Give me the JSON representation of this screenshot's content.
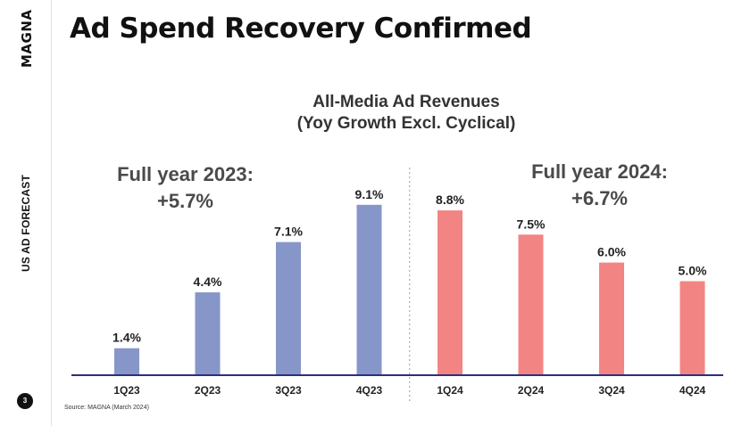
{
  "brand": {
    "logo_text": "MAGNA"
  },
  "sidebar": {
    "section_label": "US AD FORECAST",
    "page_number": "3"
  },
  "slide": {
    "title": "Ad Spend Recovery Confirmed",
    "source": "Source: MAGNA (March 2024)"
  },
  "summaries": {
    "y2023": {
      "line1": "Full year 2023:",
      "line2": "+5.7%"
    },
    "y2024": {
      "line1": "Full year 2024:",
      "line2": "+6.7%"
    }
  },
  "colors": {
    "bar_2023": "#8796c8",
    "bar_2024": "#f28583",
    "baseline": "#2e2f7a",
    "divider": "#9a9a9a"
  },
  "chart_data": {
    "type": "bar",
    "title": [
      "All-Media Ad Revenues",
      "(Yoy Growth Excl. Cyclical)"
    ],
    "categories": [
      "1Q23",
      "2Q23",
      "3Q23",
      "4Q23",
      "1Q24",
      "2Q24",
      "3Q24",
      "4Q24"
    ],
    "values": [
      1.4,
      4.4,
      7.1,
      9.1,
      8.8,
      7.5,
      6.0,
      5.0
    ],
    "value_labels": [
      "1.4%",
      "4.4%",
      "7.1%",
      "9.1%",
      "8.8%",
      "7.5%",
      "6.0%",
      "5.0%"
    ],
    "groups": [
      {
        "name": "2023",
        "categories": [
          "1Q23",
          "2Q23",
          "3Q23",
          "4Q23"
        ],
        "color": "#8796c8"
      },
      {
        "name": "2024",
        "categories": [
          "1Q24",
          "2Q24",
          "3Q24",
          "4Q24"
        ],
        "color": "#f28583"
      }
    ],
    "ylim": [
      0,
      10
    ],
    "xlabel": "",
    "ylabel": "",
    "grid": false,
    "legend": "none"
  }
}
